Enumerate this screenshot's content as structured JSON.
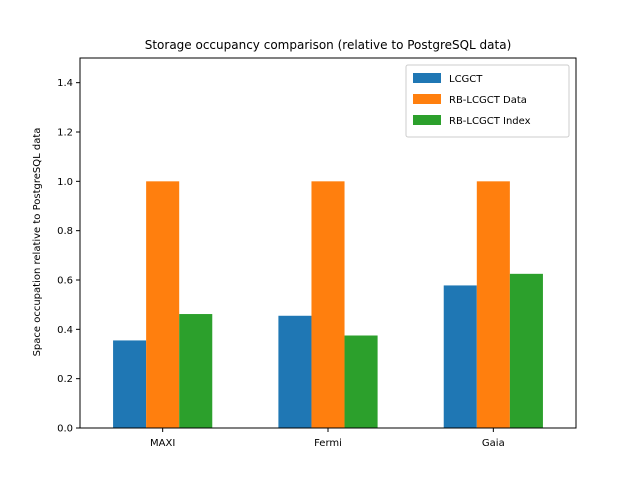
{
  "chart_data": {
    "type": "bar",
    "title": "Storage occupancy comparison (relative to PostgreSQL data)",
    "xlabel": "",
    "ylabel": "Space occupation relative to PostgreSQL data",
    "categories": [
      "MAXI",
      "Fermi",
      "Gaia"
    ],
    "series": [
      {
        "name": "LCGCT",
        "values": [
          0.355,
          0.455,
          0.578
        ],
        "color": "#1f77b4"
      },
      {
        "name": "RB-LCGCT Data",
        "values": [
          1.0,
          1.0,
          1.0
        ],
        "color": "#ff7f0e"
      },
      {
        "name": "RB-LCGCT Index",
        "values": [
          0.462,
          0.375,
          0.625
        ],
        "color": "#2ca02c"
      }
    ],
    "ylim": [
      0,
      1.5
    ],
    "yticks": [
      "0.0",
      "0.2",
      "0.4",
      "0.6",
      "0.8",
      "1.0",
      "1.2",
      "1.4"
    ],
    "grid": false,
    "legend_position": "top-right"
  }
}
